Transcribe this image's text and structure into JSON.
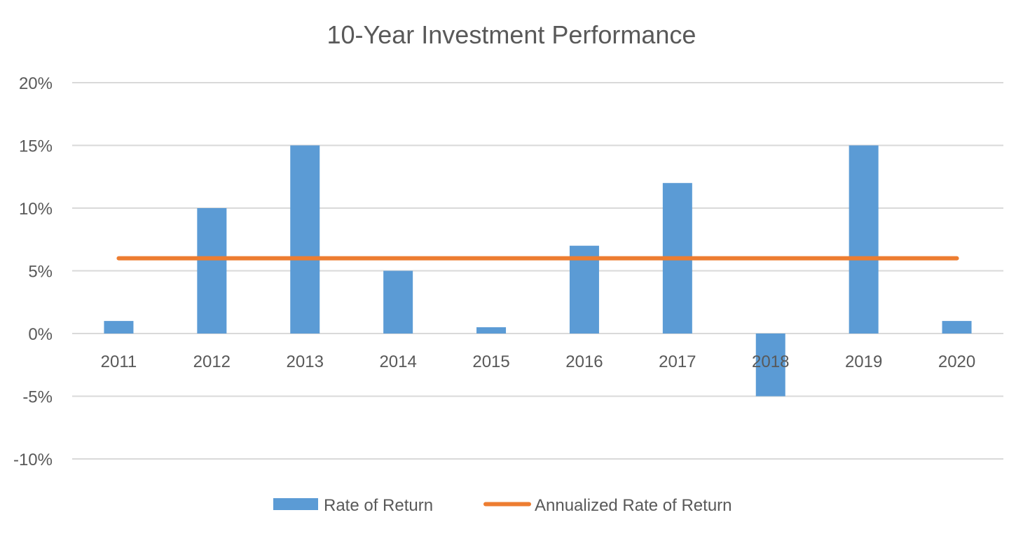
{
  "chart_data": {
    "type": "bar",
    "title": "10-Year Investment Performance",
    "categories": [
      "2011",
      "2012",
      "2013",
      "2014",
      "2015",
      "2016",
      "2017",
      "2018",
      "2019",
      "2020"
    ],
    "series": [
      {
        "name": "Rate of Return",
        "type": "bar",
        "color": "#5b9bd5",
        "values": [
          1,
          10,
          15,
          5,
          0.5,
          7,
          12,
          -5,
          15,
          1
        ]
      },
      {
        "name": "Annualized Rate of Return",
        "type": "line",
        "color": "#ed7d31",
        "values": [
          6,
          6,
          6,
          6,
          6,
          6,
          6,
          6,
          6,
          6
        ]
      }
    ],
    "y_ticks": [
      "20%",
      "15%",
      "10%",
      "5%",
      "0%",
      "-5%",
      "-10%"
    ],
    "y_tick_values": [
      20,
      15,
      10,
      5,
      0,
      -5,
      -10
    ],
    "ylim": [
      -10,
      20
    ],
    "grid": true,
    "legend_position": "bottom"
  }
}
